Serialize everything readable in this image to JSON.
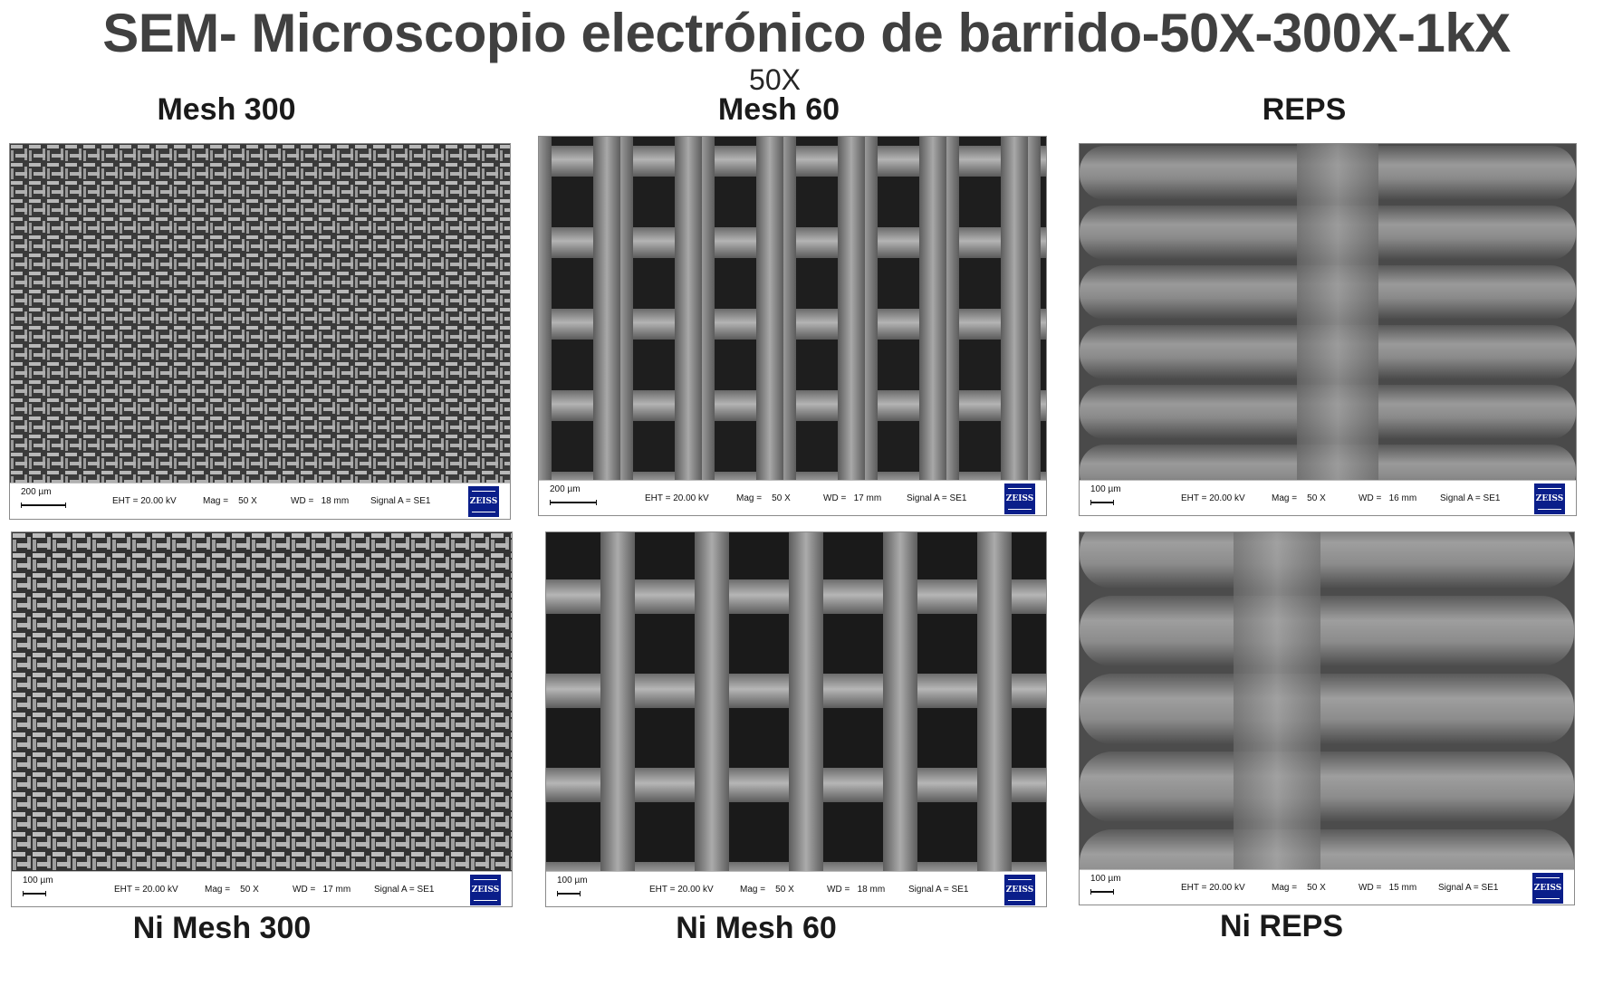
{
  "title": "SEM- Microscopio electrónico de barrido-50X-300X-1kX",
  "subtitle": "50X",
  "top_labels": [
    "Mesh 300",
    "Mesh 60",
    "REPS"
  ],
  "bottom_labels": [
    "Ni Mesh 300",
    "Ni Mesh 60",
    "Ni REPS"
  ],
  "panels": [
    {
      "scale": "200 µm",
      "eht": "EHT = 20.00 kV",
      "mag": "Mag =    50 X",
      "wd": "WD =   18 mm",
      "signal": "Signal A = SE1",
      "logo": "ZEISS"
    },
    {
      "scale": "200 µm",
      "eht": "EHT = 20.00 kV",
      "mag": "Mag =    50 X",
      "wd": "WD =   17 mm",
      "signal": "Signal A = SE1",
      "logo": "ZEISS"
    },
    {
      "scale": "100 µm",
      "eht": "EHT = 20.00 kV",
      "mag": "Mag =    50 X",
      "wd": "WD =   16 mm",
      "signal": "Signal A = SE1",
      "logo": "ZEISS"
    },
    {
      "scale": "100 µm",
      "eht": "EHT = 20.00 kV",
      "mag": "Mag =    50 X",
      "wd": "WD =   17 mm",
      "signal": "Signal A = SE1",
      "logo": "ZEISS"
    },
    {
      "scale": "100 µm",
      "eht": "EHT = 20.00 kV",
      "mag": "Mag =    50 X",
      "wd": "WD =   18 mm",
      "signal": "Signal A = SE1",
      "logo": "ZEISS"
    },
    {
      "scale": "100 µm",
      "eht": "EHT = 20.00 kV",
      "mag": "Mag =    50 X",
      "wd": "WD =   15 mm",
      "signal": "Signal A = SE1",
      "logo": "ZEISS"
    }
  ]
}
